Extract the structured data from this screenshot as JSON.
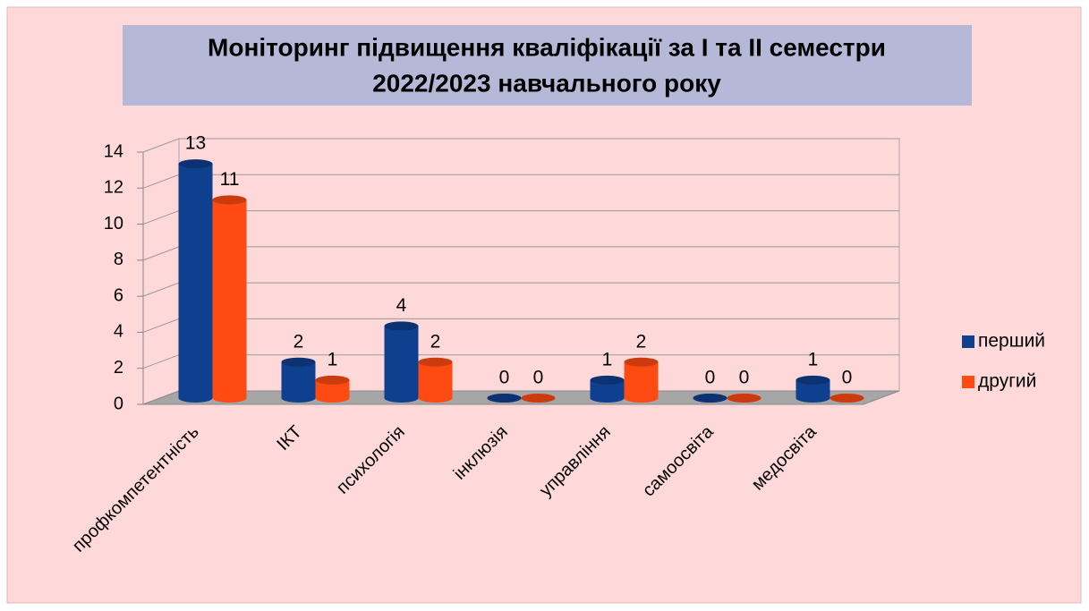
{
  "chart_data": {
    "type": "bar3d",
    "title": [
      "Моніторинг підвищення кваліфікації за І та ІІ семестри",
      "2022/2023 навчального року"
    ],
    "categories": [
      "профкомпетентність",
      "ІКТ",
      "психологія",
      "інклюзія",
      "управління",
      "самоосвіта",
      "медосвіта"
    ],
    "series": [
      {
        "name": "перший",
        "color": "#0f3f8f",
        "values": [
          13,
          2,
          4,
          0,
          1,
          0,
          1
        ]
      },
      {
        "name": "другий",
        "color": "#ff4a12",
        "values": [
          11,
          1,
          2,
          0,
          2,
          0,
          0
        ]
      }
    ],
    "ylim": [
      0,
      14
    ],
    "yticks": [
      0,
      2,
      4,
      6,
      8,
      10,
      12,
      14
    ],
    "grid": true,
    "legend": "right"
  }
}
